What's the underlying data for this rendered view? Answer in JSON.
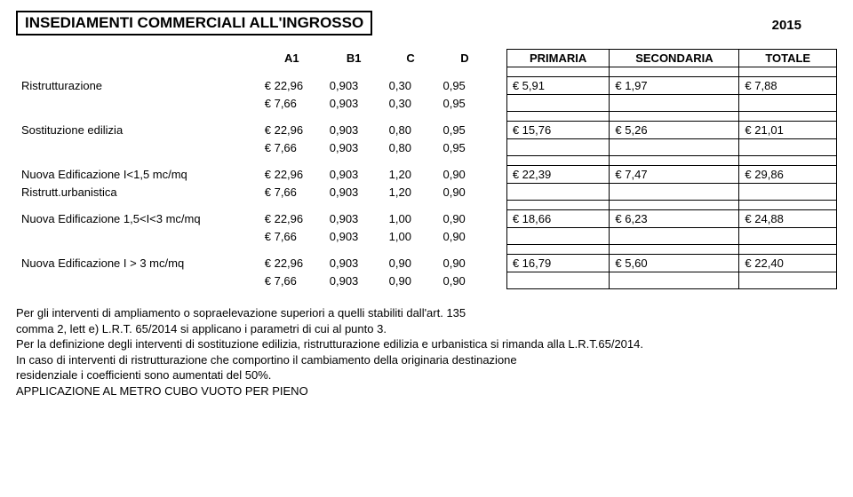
{
  "title": "INSEDIAMENTI COMMERCIALI ALL'INGROSSO",
  "year": "2015",
  "headers": {
    "a": "A1",
    "b": "B1",
    "c": "C",
    "d": "D",
    "p": "PRIMARIA",
    "s": "SECONDARIA",
    "t": "TOTALE"
  },
  "rows": {
    "r1": {
      "label": "Ristrutturazione",
      "line1": {
        "a": "€ 22,96",
        "b": "0,903",
        "c": "0,30",
        "d": "0,95",
        "p": "€ 5,91",
        "s": "€ 1,97",
        "t": "€ 7,88"
      },
      "line2": {
        "a": "€ 7,66",
        "b": "0,903",
        "c": "0,30",
        "d": "0,95"
      }
    },
    "r2": {
      "label": "Sostituzione edilizia",
      "line1": {
        "a": "€ 22,96",
        "b": "0,903",
        "c": "0,80",
        "d": "0,95",
        "p": "€ 15,76",
        "s": "€ 5,26",
        "t": "€ 21,01"
      },
      "line2": {
        "a": "€ 7,66",
        "b": "0,903",
        "c": "0,80",
        "d": "0,95"
      }
    },
    "r3a": {
      "label": "Nuova Edificazione I<1,5 mc/mq",
      "line1": {
        "a": "€ 22,96",
        "b": "0,903",
        "c": "1,20",
        "d": "0,90",
        "p": "€ 22,39",
        "s": "€ 7,47",
        "t": "€ 29,86"
      }
    },
    "r3b": {
      "label": "Ristrutt.urbanistica",
      "line1": {
        "a": "€ 7,66",
        "b": "0,903",
        "c": "1,20",
        "d": "0,90"
      }
    },
    "r4": {
      "label": "Nuova Edificazione 1,5<I<3 mc/mq",
      "line1": {
        "a": "€ 22,96",
        "b": "0,903",
        "c": "1,00",
        "d": "0,90",
        "p": "€ 18,66",
        "s": "€ 6,23",
        "t": "€ 24,88"
      },
      "line2": {
        "a": "€ 7,66",
        "b": "0,903",
        "c": "1,00",
        "d": "0,90"
      }
    },
    "r5": {
      "label": "Nuova Edificazione I > 3 mc/mq",
      "line1": {
        "a": "€ 22,96",
        "b": "0,903",
        "c": "0,90",
        "d": "0,90",
        "p": "€ 16,79",
        "s": "€ 5,60",
        "t": "€ 22,40"
      },
      "line2": {
        "a": "€ 7,66",
        "b": "0,903",
        "c": "0,90",
        "d": "0,90"
      }
    }
  },
  "footer": {
    "l1": "Per gli interventi di ampliamento o sopraelevazione superiori a quelli stabiliti dall'art. 135",
    "l2": "comma 2, lett e) L.R.T. 65/2014  si applicano i parametri di cui  al punto 3.",
    "l3": "Per la definizione degli interventi di sostituzione edilizia, ristrutturazione edilizia e urbanistica si rimanda alla L.R.T.65/2014.",
    "l4": "In caso di interventi di ristrutturazione che comportino il cambiamento della originaria destinazione",
    "l5": "residenziale i coefficienti sono aumentati del 50%.",
    "l6": "APPLICAZIONE AL METRO CUBO VUOTO PER PIENO"
  }
}
